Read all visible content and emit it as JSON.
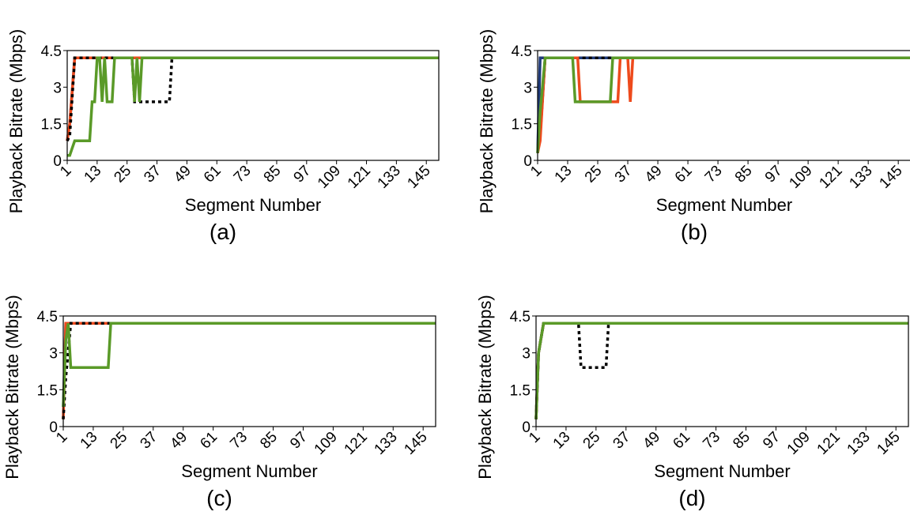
{
  "colors": {
    "green": "#5a9a28",
    "red": "#ee4a1c",
    "blue": "#1f3a7a",
    "black": "#000000"
  },
  "chart_data": [
    {
      "type": "line",
      "caption": "(a)",
      "xlabel": "Segment Number",
      "ylabel": "Playback Bitrate (Mbps)",
      "xlim": [
        1,
        150
      ],
      "ylim": [
        0,
        4.5
      ],
      "xticks": [
        "1",
        "13",
        "25",
        "37",
        "49",
        "61",
        "73",
        "85",
        "97",
        "109",
        "121",
        "133",
        "145"
      ],
      "yticks": [
        "0",
        "1.5",
        "3",
        "4.5"
      ],
      "grid": false,
      "series": [
        {
          "color": "blue",
          "style": "solid",
          "x": [
            1,
            2,
            4,
            150
          ],
          "y": [
            0.8,
            1.5,
            4.2,
            4.2
          ]
        },
        {
          "color": "red",
          "style": "solid",
          "x": [
            1,
            2,
            4,
            150
          ],
          "y": [
            0.8,
            1.5,
            4.2,
            4.2
          ]
        },
        {
          "color": "black",
          "style": "dotted",
          "x": [
            1,
            2,
            4,
            27,
            28,
            42,
            43,
            150
          ],
          "y": [
            0.8,
            1.0,
            4.2,
            4.2,
            2.4,
            2.4,
            4.2,
            4.2
          ]
        },
        {
          "color": "green",
          "style": "solid",
          "x": [
            1,
            2,
            3,
            4,
            5,
            10,
            11,
            12,
            13,
            14,
            15,
            16,
            17,
            18,
            19,
            20,
            21,
            22,
            23,
            24,
            27,
            28,
            29,
            30,
            31,
            32,
            150
          ],
          "y": [
            0.2,
            0.2,
            0.5,
            0.8,
            0.8,
            0.8,
            2.4,
            2.4,
            4.2,
            4.2,
            2.4,
            4.2,
            2.4,
            2.4,
            2.4,
            4.2,
            4.2,
            4.2,
            4.2,
            4.2,
            4.2,
            2.4,
            4.2,
            2.4,
            4.2,
            4.2,
            4.2
          ]
        }
      ]
    },
    {
      "type": "line",
      "caption": "(b)",
      "xlabel": "Segment Number",
      "ylabel": "Playback Bitrate (Mbps)",
      "xlim": [
        1,
        150
      ],
      "ylim": [
        0,
        4.5
      ],
      "xticks": [
        "1",
        "13",
        "25",
        "37",
        "49",
        "61",
        "73",
        "85",
        "97",
        "109",
        "121",
        "133",
        "145"
      ],
      "yticks": [
        "0",
        "1.5",
        "3",
        "4.5"
      ],
      "grid": false,
      "series": [
        {
          "color": "blue",
          "style": "solid",
          "x": [
            1,
            2,
            3,
            150
          ],
          "y": [
            0.3,
            4.2,
            4.2,
            4.2
          ]
        },
        {
          "color": "black",
          "style": "dotted",
          "x": [
            1,
            2,
            4,
            150
          ],
          "y": [
            0.3,
            1.0,
            4.2,
            4.2
          ]
        },
        {
          "color": "red",
          "style": "solid",
          "x": [
            1,
            2,
            3,
            4,
            17,
            18,
            19,
            33,
            34,
            37,
            38,
            39,
            40,
            150
          ],
          "y": [
            0.3,
            0.8,
            2.5,
            4.2,
            4.2,
            2.4,
            2.4,
            2.4,
            4.2,
            4.2,
            2.4,
            4.2,
            4.2,
            4.2
          ]
        },
        {
          "color": "green",
          "style": "solid",
          "x": [
            1,
            2,
            4,
            15,
            16,
            30,
            31,
            150
          ],
          "y": [
            0.3,
            2.0,
            4.2,
            4.2,
            2.4,
            2.4,
            4.2,
            4.2
          ]
        }
      ]
    },
    {
      "type": "line",
      "caption": "(c)",
      "xlabel": "Segment Number",
      "ylabel": "Playback Bitrate (Mbps)",
      "xlim": [
        1,
        150
      ],
      "ylim": [
        0,
        4.5
      ],
      "xticks": [
        "1",
        "13",
        "25",
        "37",
        "49",
        "61",
        "73",
        "85",
        "97",
        "109",
        "121",
        "133",
        "145"
      ],
      "yticks": [
        "0",
        "1.5",
        "3",
        "4.5"
      ],
      "grid": false,
      "series": [
        {
          "color": "blue",
          "style": "solid",
          "x": [
            1,
            2,
            3,
            150
          ],
          "y": [
            0.8,
            4.2,
            4.2,
            4.2
          ]
        },
        {
          "color": "red",
          "style": "solid",
          "x": [
            1,
            2,
            3,
            150
          ],
          "y": [
            0.3,
            4.2,
            4.2,
            4.2
          ]
        },
        {
          "color": "black",
          "style": "dotted",
          "x": [
            1,
            2,
            4,
            150
          ],
          "y": [
            0.3,
            2.0,
            4.2,
            4.2
          ]
        },
        {
          "color": "green",
          "style": "solid",
          "x": [
            1,
            2,
            3,
            4,
            19,
            20,
            150
          ],
          "y": [
            0.8,
            3.5,
            4.2,
            2.4,
            2.4,
            4.2,
            4.2
          ]
        }
      ]
    },
    {
      "type": "line",
      "caption": "(d)",
      "xlabel": "Segment Number",
      "ylabel": "Playback Bitrate (Mbps)",
      "xlim": [
        1,
        150
      ],
      "ylim": [
        0,
        4.5
      ],
      "xticks": [
        "1",
        "13",
        "25",
        "37",
        "49",
        "61",
        "73",
        "85",
        "97",
        "109",
        "121",
        "133",
        "145"
      ],
      "yticks": [
        "0",
        "1.5",
        "3",
        "4.5"
      ],
      "grid": false,
      "series": [
        {
          "color": "blue",
          "style": "solid",
          "x": [
            1,
            2,
            4,
            150
          ],
          "y": [
            0.3,
            3.0,
            4.2,
            4.2
          ]
        },
        {
          "color": "red",
          "style": "solid",
          "x": [
            1,
            2,
            4,
            150
          ],
          "y": [
            0.3,
            3.0,
            4.2,
            4.2
          ]
        },
        {
          "color": "black",
          "style": "dotted",
          "x": [
            1,
            2,
            4,
            18,
            19,
            29,
            30,
            150
          ],
          "y": [
            0.3,
            3.0,
            4.2,
            4.2,
            2.4,
            2.4,
            4.2,
            4.2
          ]
        },
        {
          "color": "green",
          "style": "solid",
          "x": [
            1,
            2,
            4,
            150
          ],
          "y": [
            0.3,
            3.0,
            4.2,
            4.2
          ]
        }
      ]
    }
  ]
}
